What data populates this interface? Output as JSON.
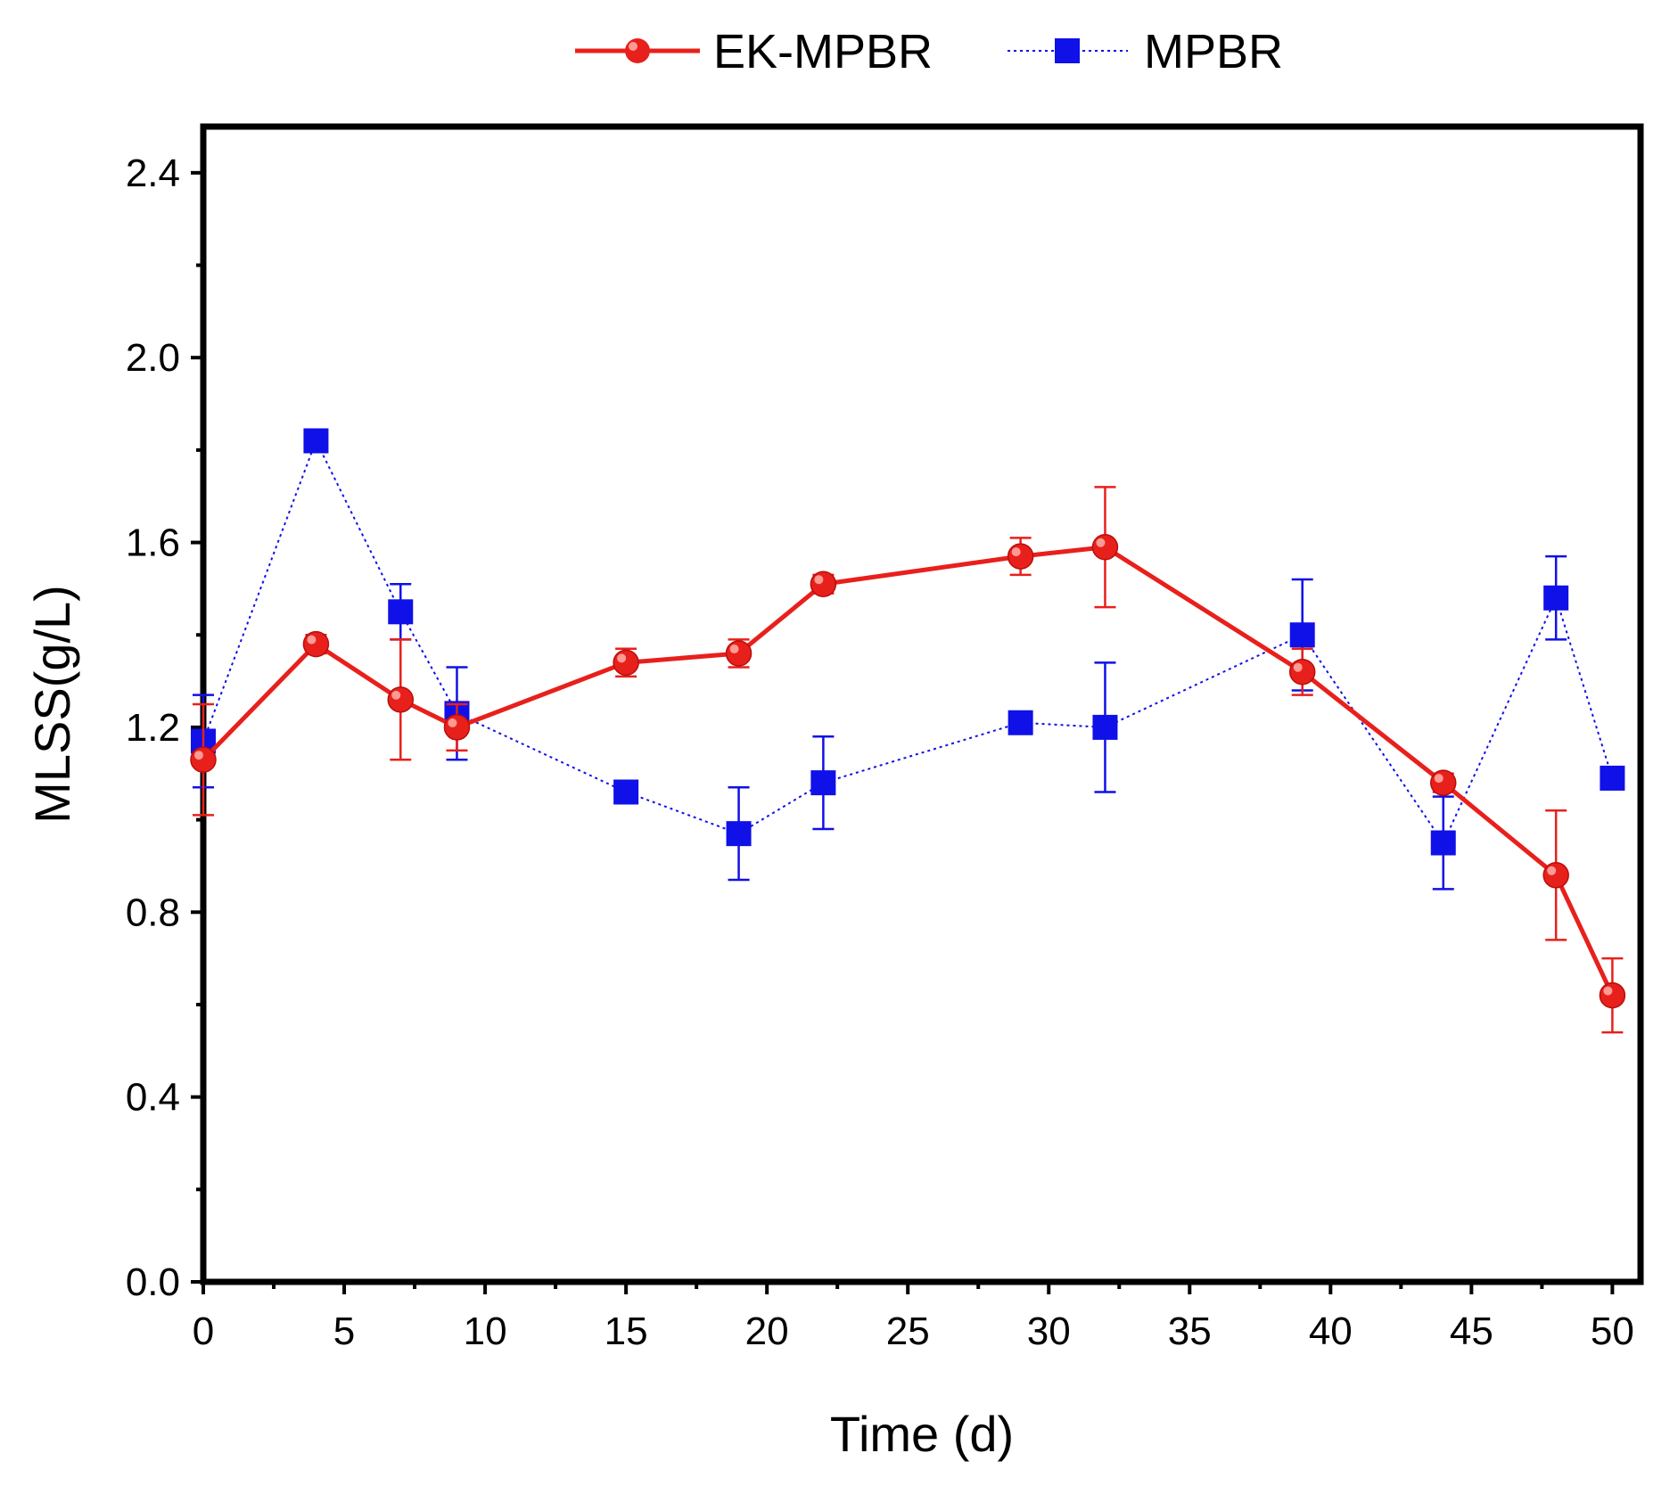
{
  "chart_data": {
    "type": "line",
    "title": "",
    "xlabel": "Time (d)",
    "ylabel": "MLSS(g/L)",
    "xlim": [
      0,
      51
    ],
    "ylim": [
      0,
      2.5
    ],
    "xticks": [
      0,
      5,
      10,
      15,
      20,
      25,
      30,
      35,
      40,
      45,
      50
    ],
    "xtick_labels": [
      "0",
      "5",
      "10",
      "15",
      "20",
      "25",
      "30",
      "35",
      "40",
      "45",
      "50"
    ],
    "yticks": [
      0,
      0.4,
      0.8,
      1.2,
      1.6,
      2.0,
      2.4
    ],
    "ytick_labels": [
      "0.0",
      "0.4",
      "0.8",
      "1.2",
      "1.6",
      "2.0",
      "2.4"
    ],
    "y_minor_ticks": [
      0.2,
      0.6,
      1.0,
      1.4,
      1.8,
      2.2
    ],
    "x_minor_ticks": [
      2.5,
      7.5,
      12.5,
      17.5,
      22.5,
      27.5,
      32.5,
      37.5,
      42.5,
      47.5
    ],
    "grid": false,
    "legend_position": "top-center",
    "series": [
      {
        "name": "EK-MPBR",
        "color": "#e8201c",
        "marker": "circle",
        "line_style": "solid",
        "x": [
          0,
          4,
          7,
          9,
          15,
          19,
          22,
          29,
          32,
          39,
          44,
          48,
          50
        ],
        "y": [
          1.13,
          1.38,
          1.26,
          1.2,
          1.34,
          1.36,
          1.51,
          1.57,
          1.59,
          1.32,
          1.08,
          0.88,
          0.62
        ],
        "error": [
          0.12,
          0.02,
          0.13,
          0.05,
          0.03,
          0.03,
          0.02,
          0.04,
          0.13,
          0.05,
          0.02,
          0.14,
          0.08
        ]
      },
      {
        "name": "MPBR",
        "color": "#1010e8",
        "marker": "square",
        "line_style": "dotted",
        "x": [
          0,
          4,
          7,
          9,
          15,
          19,
          22,
          29,
          32,
          39,
          44,
          48,
          50
        ],
        "y": [
          1.17,
          1.82,
          1.45,
          1.23,
          1.06,
          0.97,
          1.08,
          1.21,
          1.2,
          1.4,
          0.95,
          1.48,
          1.09
        ],
        "error": [
          0.1,
          0.02,
          0.06,
          0.1,
          0.01,
          0.1,
          0.1,
          0.01,
          0.14,
          0.12,
          0.1,
          0.09,
          0.01
        ]
      }
    ]
  }
}
